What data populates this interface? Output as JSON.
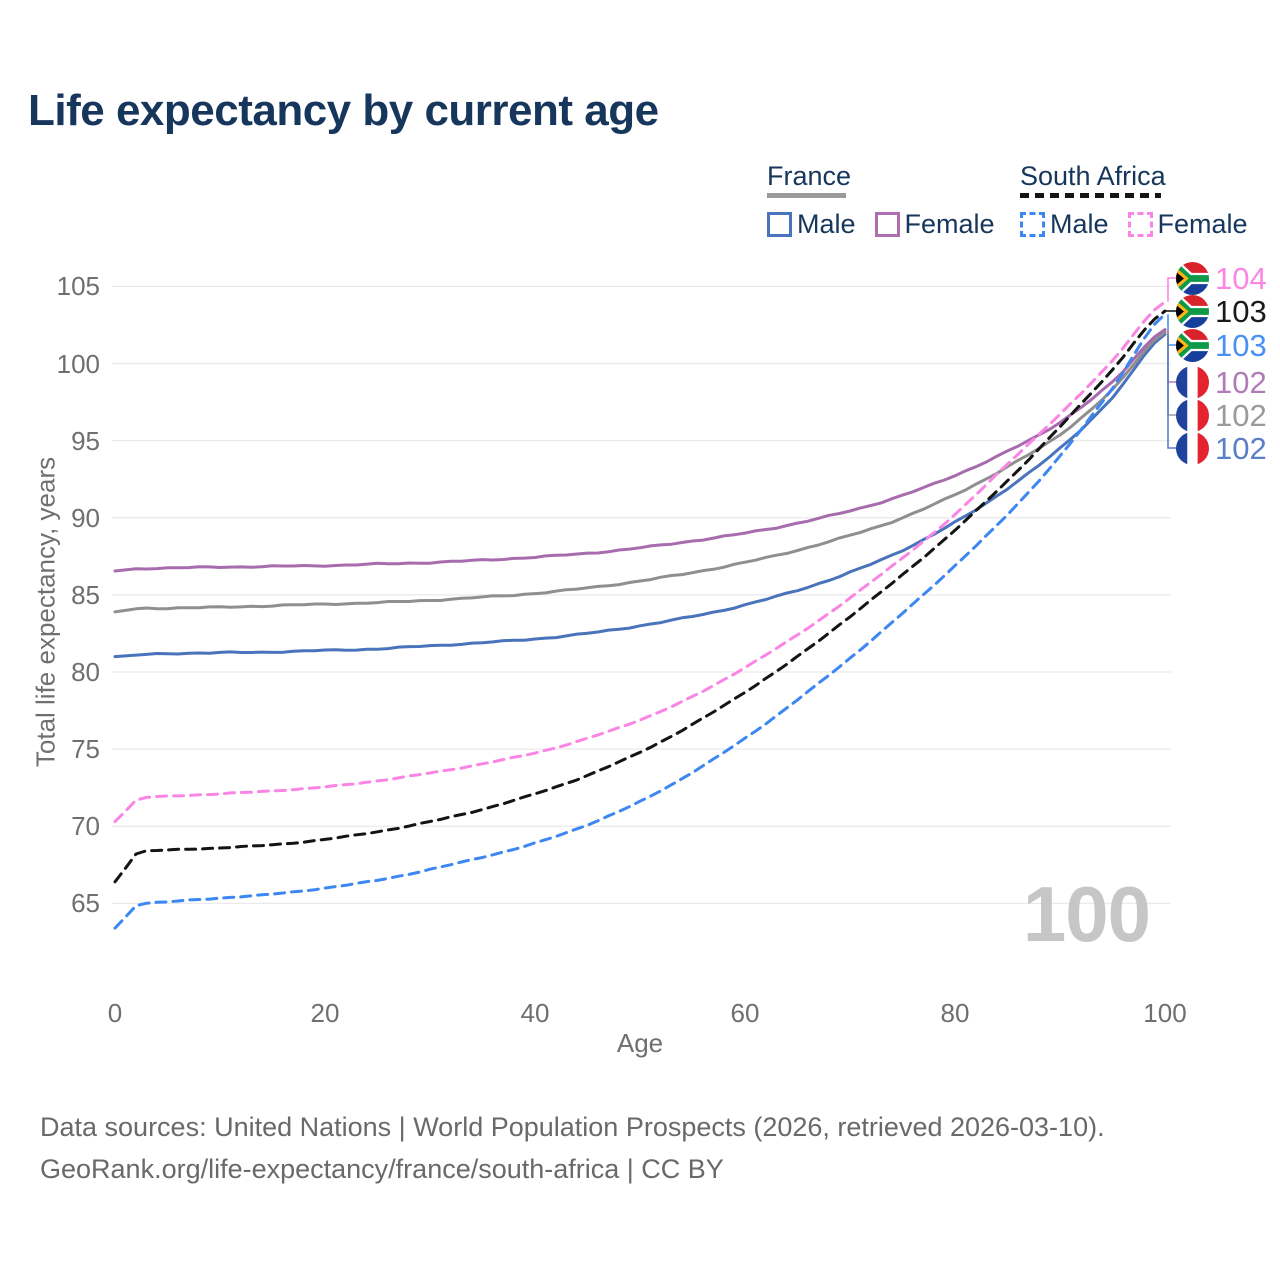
{
  "title": "Life expectancy by current age",
  "legend": {
    "groups": [
      {
        "label": "France",
        "line_style": "solid",
        "underline_color": "#9a9a9a",
        "items": [
          {
            "label": "Male",
            "color": "#4973bb",
            "dashed": false
          },
          {
            "label": "Female",
            "color": "#ad6fb0",
            "dashed": false
          }
        ]
      },
      {
        "label": "South Africa",
        "line_style": "dashed",
        "underline_color": "#141414",
        "items": [
          {
            "label": "Male",
            "color": "#3d87f2",
            "dashed": true
          },
          {
            "label": "Female",
            "color": "#fb85e4",
            "dashed": true
          }
        ]
      }
    ]
  },
  "chart_data": {
    "type": "line",
    "title": "Life expectancy by current age",
    "xlabel": "Age",
    "ylabel": "Total life expectancy, years",
    "xlim": [
      0,
      100
    ],
    "ylim": [
      62,
      106
    ],
    "xticks": [
      0,
      20,
      40,
      60,
      80,
      100
    ],
    "yticks": [
      65,
      70,
      75,
      80,
      85,
      90,
      95,
      100,
      105
    ],
    "grid": "horizontal-only",
    "legend_position": "top-right",
    "watermark": "100",
    "x_anchors": [
      0,
      2,
      5,
      10,
      15,
      20,
      25,
      30,
      35,
      40,
      45,
      50,
      55,
      60,
      65,
      70,
      75,
      80,
      85,
      90,
      95,
      100
    ],
    "series": [
      {
        "name": "France Male",
        "country": "fr",
        "sex": "male",
        "color": "#4973bb",
        "label_color": "#5b7fc7",
        "dashed": false,
        "values": [
          81.0,
          81.1,
          81.2,
          81.25,
          81.3,
          81.4,
          81.5,
          81.7,
          81.9,
          82.15,
          82.5,
          83.0,
          83.6,
          84.35,
          85.3,
          86.45,
          87.9,
          89.7,
          91.9,
          94.5,
          97.8,
          101.9
        ],
        "end_label": "102"
      },
      {
        "name": "France",
        "country": "fr",
        "sex": "all",
        "color": "#8f8f8f",
        "label_color": "#9a9a9a",
        "dashed": false,
        "values": [
          83.9,
          84.1,
          84.15,
          84.2,
          84.3,
          84.4,
          84.5,
          84.65,
          84.85,
          85.1,
          85.45,
          85.9,
          86.45,
          87.1,
          87.9,
          88.85,
          90.0,
          91.5,
          93.3,
          95.4,
          98.3,
          102.05
        ],
        "end_label": "102"
      },
      {
        "name": "France Female",
        "country": "fr",
        "sex": "female",
        "color": "#a76cae",
        "label_color": "#b07cb8",
        "dashed": false,
        "values": [
          86.55,
          86.7,
          86.75,
          86.8,
          86.85,
          86.9,
          87.0,
          87.1,
          87.25,
          87.45,
          87.7,
          88.05,
          88.5,
          89.0,
          89.65,
          90.45,
          91.45,
          92.75,
          94.3,
          96.2,
          98.8,
          102.2
        ],
        "end_label": "102"
      },
      {
        "name": "South Africa Male",
        "country": "za",
        "sex": "male",
        "color": "#3d87f2",
        "label_color": "#4a90f5",
        "dashed": true,
        "values": [
          63.4,
          64.85,
          65.1,
          65.35,
          65.6,
          66.0,
          66.5,
          67.2,
          68.0,
          68.9,
          70.1,
          71.6,
          73.5,
          75.7,
          78.2,
          80.9,
          83.8,
          86.9,
          90.2,
          94.0,
          98.4,
          103.2
        ],
        "end_label": "103"
      },
      {
        "name": "South Africa",
        "country": "za",
        "sex": "all",
        "color": "#141414",
        "label_color": "#1a1a1a",
        "dashed": true,
        "values": [
          66.4,
          68.2,
          68.45,
          68.6,
          68.8,
          69.15,
          69.65,
          70.3,
          71.1,
          72.1,
          73.3,
          74.8,
          76.6,
          78.7,
          81.0,
          83.6,
          86.3,
          89.2,
          92.4,
          95.9,
          99.6,
          103.4
        ],
        "end_label": "103"
      },
      {
        "name": "South Africa Female",
        "country": "za",
        "sex": "female",
        "color": "#fb85e4",
        "label_color": "#fb87e5",
        "dashed": true,
        "values": [
          70.3,
          71.7,
          71.95,
          72.1,
          72.3,
          72.55,
          72.95,
          73.45,
          74.05,
          74.75,
          75.7,
          76.9,
          78.4,
          80.3,
          82.4,
          84.8,
          87.4,
          90.2,
          93.5,
          96.7,
          100.2,
          104.0
        ],
        "end_label": "104"
      }
    ],
    "colors": {
      "grid": "#eaeaea",
      "tick_text": "#6f6f6f",
      "title_text": "#16365c",
      "watermark": "#c6c6c6",
      "footer_text": "#696969"
    }
  },
  "footer": {
    "line1": "Data sources: United Nations | World Population Prospects (2026, retrieved 2026-03-10).",
    "line2": "GeoRank.org/life-expectancy/france/south-africa | CC BY"
  }
}
